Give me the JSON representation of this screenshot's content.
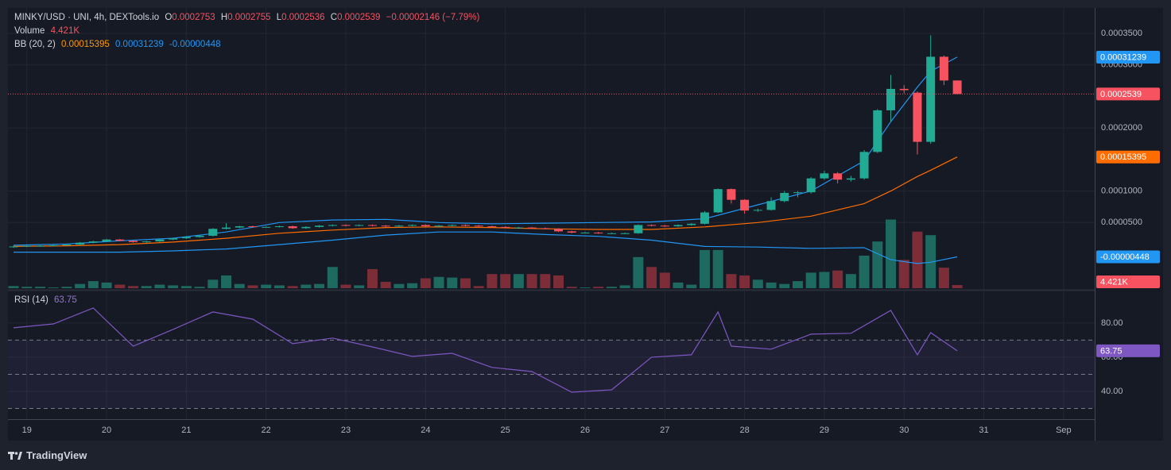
{
  "chart_data": {
    "type": "candlestick",
    "symbol": "MINKY/USD · UNI, 4h, DEXTools.io",
    "ohlc_legend": [
      {
        "key": "O",
        "value": "0.0002753"
      },
      {
        "key": "H",
        "value": "0.0002755"
      },
      {
        "key": "L",
        "value": "0.0002536"
      },
      {
        "key": "C",
        "value": "0.0002539"
      }
    ],
    "change": "−0.00002146 (−7.79%)",
    "up_color": "#22ab94",
    "down_color": "#f7525f",
    "volume_up_color": "#1e6a60",
    "volume_down_color": "#7c2d38",
    "open": [
      1.1e-05,
      1.2e-05,
      1.3e-05,
      1.3e-05,
      1.4e-05,
      1.5e-05,
      1.8e-05,
      2e-05,
      2.3e-05,
      2.1e-05,
      1.9e-05,
      2e-05,
      2.3e-05,
      2.5e-05,
      2.7e-05,
      2.9e-05,
      4e-05,
      4.2e-05,
      4.4e-05,
      4.3e-05,
      4.3e-05,
      4.4e-05,
      4.1e-05,
      4.3e-05,
      4.5e-05,
      4.6e-05,
      4.5e-05,
      4.6e-05,
      4.5e-05,
      4.4e-05,
      4.5e-05,
      4.6e-05,
      4.4e-05,
      4.5e-05,
      4.6e-05,
      4.5e-05,
      4.4e-05,
      4.3e-05,
      4.2e-05,
      4.2e-05,
      4.1e-05,
      4e-05,
      3.6e-05,
      3.4e-05,
      3.4e-05,
      3.3e-05,
      3.3e-05,
      3.3e-05,
      4.6e-05,
      4.5e-05,
      4.4e-05,
      4.6e-05,
      4.8e-05,
      6.6e-05,
      0.000103,
      8.6e-05,
      6.9e-05,
      7e-05,
      8.4e-05,
      9.7e-05,
      9.8e-05,
      0.00012,
      0.000128,
      0.000118,
      0.00012,
      0.000162,
      0.000228,
      0.000262,
      0.000256,
      0.000178,
      0.000313,
      0.0002753
    ],
    "high": [
      1.3e-05,
      1.4e-05,
      1.4e-05,
      1.5e-05,
      1.6e-05,
      1.9e-05,
      2.1e-05,
      2.4e-05,
      2.4e-05,
      2.2e-05,
      2.1e-05,
      2.4e-05,
      2.6e-05,
      2.8e-05,
      3e-05,
      4.1e-05,
      4.9e-05,
      4.5e-05,
      4.5e-05,
      4.4e-05,
      4.5e-05,
      4.5e-05,
      4.4e-05,
      4.6e-05,
      4.7e-05,
      4.7e-05,
      4.7e-05,
      4.7e-05,
      4.6e-05,
      4.6e-05,
      4.7e-05,
      4.7e-05,
      4.6e-05,
      4.7e-05,
      4.7e-05,
      4.6e-05,
      4.5e-05,
      4.4e-05,
      4.3e-05,
      4.3e-05,
      4.2e-05,
      4.1e-05,
      3.7e-05,
      3.5e-05,
      3.5e-05,
      3.4e-05,
      3.4e-05,
      4.7e-05,
      4.7e-05,
      4.6e-05,
      4.7e-05,
      4.9e-05,
      6.8e-05,
      0.000104,
      0.000104,
      8.7e-05,
      7.2e-05,
      9e-05,
      0.0001,
      0.0001,
      0.000122,
      0.000132,
      0.00013,
      0.000124,
      0.000165,
      0.00023,
      0.000284,
      0.000268,
      0.000258,
      0.000347,
      0.000315,
      0.0002755
    ],
    "low": [
      1e-05,
      1.1e-05,
      1.2e-05,
      1.2e-05,
      1.3e-05,
      1.4e-05,
      1.7e-05,
      1.9e-05,
      2e-05,
      1.8e-05,
      1.8e-05,
      1.9e-05,
      2.2e-05,
      2.4e-05,
      2.6e-05,
      2.8e-05,
      3.9e-05,
      4.1e-05,
      4.2e-05,
      4.2e-05,
      4.2e-05,
      4e-05,
      4e-05,
      4.2e-05,
      4.4e-05,
      4.4e-05,
      4.4e-05,
      4.4e-05,
      4.3e-05,
      4.3e-05,
      4.4e-05,
      4.3e-05,
      4.3e-05,
      4.4e-05,
      4.4e-05,
      4.3e-05,
      4.2e-05,
      4.1e-05,
      4.1e-05,
      4e-05,
      3.9e-05,
      3.5e-05,
      3.3e-05,
      3.3e-05,
      3.2e-05,
      3.2e-05,
      3.2e-05,
      3.2e-05,
      4.4e-05,
      4.3e-05,
      4.3e-05,
      4.5e-05,
      4.7e-05,
      6.5e-05,
      8e-05,
      6.4e-05,
      6.7e-05,
      6.9e-05,
      8.2e-05,
      9e-05,
      9.6e-05,
      0.000118,
      0.000112,
      0.000115,
      0.000118,
      0.00016,
      0.00021,
      0.000255,
      0.000158,
      0.000175,
      0.000268,
      0.0002536
    ],
    "close": [
      1.2e-05,
      1.3e-05,
      1.3e-05,
      1.4e-05,
      1.5e-05,
      1.8e-05,
      2e-05,
      2.3e-05,
      2.1e-05,
      1.9e-05,
      2e-05,
      2.3e-05,
      2.5e-05,
      2.7e-05,
      2.9e-05,
      4e-05,
      4.2e-05,
      4.4e-05,
      4.3e-05,
      4.3e-05,
      4.4e-05,
      4.1e-05,
      4.3e-05,
      4.5e-05,
      4.6e-05,
      4.5e-05,
      4.6e-05,
      4.5e-05,
      4.4e-05,
      4.5e-05,
      4.6e-05,
      4.4e-05,
      4.5e-05,
      4.6e-05,
      4.5e-05,
      4.4e-05,
      4.3e-05,
      4.2e-05,
      4.2e-05,
      4.1e-05,
      4e-05,
      3.6e-05,
      3.4e-05,
      3.4e-05,
      3.3e-05,
      3.3e-05,
      3.3e-05,
      4.6e-05,
      4.5e-05,
      4.4e-05,
      4.6e-05,
      4.8e-05,
      6.6e-05,
      0.000103,
      8.6e-05,
      6.9e-05,
      7e-05,
      8.4e-05,
      9.7e-05,
      9.8e-05,
      0.00012,
      0.000128,
      0.000118,
      0.00012,
      0.000162,
      0.000228,
      0.000262,
      0.00026,
      0.000178,
      0.000313,
      0.0002753,
      0.0002539
    ],
    "volume": [
      3,
      2,
      2,
      1,
      2,
      6,
      10,
      8,
      5,
      3,
      3,
      5,
      4,
      3,
      2,
      12,
      18,
      6,
      4,
      5,
      4,
      3,
      5,
      6,
      30,
      5,
      4,
      27,
      9,
      6,
      7,
      14,
      16,
      15,
      14,
      3,
      20,
      20,
      20,
      20,
      20,
      18,
      2,
      1,
      2,
      2,
      4,
      44,
      30,
      22,
      8,
      5,
      54,
      54,
      20,
      18,
      12,
      8,
      6,
      10,
      22,
      23,
      25,
      20,
      46,
      66,
      97,
      40,
      80,
      75,
      29,
      4.421
    ],
    "volume_legend": {
      "name": "Volume",
      "value": "4.421K"
    },
    "volume_lim": [
      0,
      110
    ],
    "bollinger": {
      "label": "BB (20, 2)",
      "x": [
        0,
        4,
        8,
        12,
        16,
        20,
        24,
        28,
        32,
        36,
        40,
        44,
        48,
        52,
        56,
        60,
        64,
        66,
        68,
        69,
        71
      ],
      "upper": {
        "color": "#2196f3",
        "last_label": "0.00031239",
        "values": [
          1.4e-05,
          1.6e-05,
          2.1e-05,
          2.5e-05,
          3.5e-05,
          5e-05,
          5.4e-05,
          5.5e-05,
          5e-05,
          4.8e-05,
          4.9e-05,
          5e-05,
          5.1e-05,
          5.6e-05,
          7.8e-05,
          0.0001,
          0.000148,
          0.00021,
          0.000265,
          0.00029,
          0.00031239
        ]
      },
      "middle": {
        "color": "#ff6d00",
        "last_label": "0.00015395",
        "values": [
          1.2e-05,
          1.3e-05,
          1.5e-05,
          1.9e-05,
          2.5e-05,
          3.3e-05,
          3.8e-05,
          4.2e-05,
          4.3e-05,
          4.2e-05,
          4e-05,
          3.9e-05,
          3.9e-05,
          4.3e-05,
          5e-05,
          6e-05,
          8e-05,
          0.0001,
          0.000123,
          0.000133,
          0.00015395
        ]
      },
      "lower": {
        "color": "#2196f3",
        "last_label": "-0.00000448",
        "values": [
          3e-06,
          3e-06,
          3e-06,
          5e-06,
          8e-06,
          1.5e-05,
          2.2e-05,
          3e-05,
          3.5e-05,
          3.5e-05,
          3.1e-05,
          2.8e-05,
          2.2e-05,
          1.2e-05,
          1.1e-05,
          9e-06,
          1e-05,
          -9e-06,
          -1.5e-05,
          -1.3e-05,
          -4.48e-06
        ]
      }
    },
    "rsi": {
      "label": "RSI (14)",
      "value_label": "63.75",
      "color": "#7e57c2",
      "x": [
        0,
        3,
        6,
        9,
        12,
        15,
        18,
        21,
        24,
        27,
        30,
        33,
        36,
        39,
        42,
        45,
        48,
        51,
        53,
        54,
        57,
        60,
        63,
        66,
        68,
        69,
        71
      ],
      "values": [
        77.2,
        79.5,
        88.8,
        66.5,
        76.3,
        86.5,
        82.3,
        67.9,
        71.2,
        66.0,
        60.5,
        62.3,
        54.0,
        51.6,
        39.5,
        40.9,
        60.0,
        61.4,
        86.5,
        66.5,
        64.7,
        73.5,
        74.0,
        87.4,
        61.4,
        74.4,
        63.75
      ],
      "ylim": [
        23.7,
        98.1
      ],
      "yticks": [
        {
          "value": 80,
          "label": "80.00"
        },
        {
          "value": 60,
          "label": "60.00"
        },
        {
          "value": 40,
          "label": "40.00"
        }
      ],
      "levels": [
        70,
        50,
        30
      ]
    },
    "ylim": [
      -5.42e-05,
      0.0003904
    ],
    "yticks": [
      {
        "value": 0.00035,
        "label": "0.0003500"
      },
      {
        "value": 0.0003,
        "label": "0.0003000"
      },
      {
        "value": 0.0002,
        "label": "0.0002000"
      },
      {
        "value": 0.0001,
        "label": "0.0001000"
      },
      {
        "value": 5e-05,
        "label": "0.0000500"
      }
    ],
    "xlim": [
      -0.42,
      81.34
    ],
    "xticks": [
      {
        "value": 1,
        "label": "19"
      },
      {
        "value": 7,
        "label": "20"
      },
      {
        "value": 13,
        "label": "21"
      },
      {
        "value": 19,
        "label": "22"
      },
      {
        "value": 25,
        "label": "23"
      },
      {
        "value": 31,
        "label": "24"
      },
      {
        "value": 37,
        "label": "25"
      },
      {
        "value": 43,
        "label": "26"
      },
      {
        "value": 49,
        "label": "27"
      },
      {
        "value": 55,
        "label": "28"
      },
      {
        "value": 61,
        "label": "29"
      },
      {
        "value": 67,
        "label": "30"
      },
      {
        "value": 73,
        "label": "31"
      },
      {
        "value": 79,
        "label": "Sep"
      }
    ],
    "grid": true,
    "price_line": true
  },
  "branding": "TradingView"
}
